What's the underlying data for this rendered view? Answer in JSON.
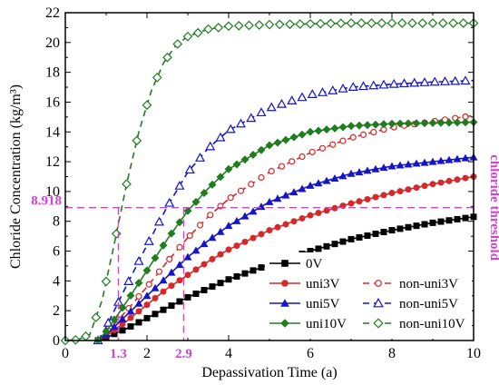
{
  "chart_data": {
    "type": "line",
    "xlabel": "Depassivation Time (a)",
    "ylabel": "Chloride Concentration (kg/m³)",
    "xlim": [
      0,
      10
    ],
    "ylim": [
      0,
      22
    ],
    "xticks": [
      "0",
      "2",
      "4",
      "6",
      "8",
      "10"
    ],
    "yticks": [
      "0",
      "2",
      "4",
      "6",
      "8",
      "10",
      "12",
      "14",
      "16",
      "18",
      "20",
      "22"
    ],
    "grid": false,
    "legend_position": "bottom-right",
    "annotations": {
      "threshold_value": 8.918,
      "threshold_label": "8.918",
      "threshold_name": "chloride threshold",
      "marker_1": {
        "x": 1.3,
        "label": "1.3"
      },
      "marker_2": {
        "x": 2.9,
        "label": "2.9"
      },
      "color": "#d63fd6"
    },
    "series": [
      {
        "name": "0V",
        "color": "#000000",
        "marker": "square",
        "dash": false,
        "x": [
          0.8,
          1,
          1.5,
          2,
          2.5,
          3,
          3.5,
          4,
          5,
          6,
          7,
          8,
          9,
          10
        ],
        "y": [
          0,
          0.2,
          0.8,
          1.5,
          2.2,
          2.9,
          3.5,
          4.1,
          5.1,
          6.0,
          6.8,
          7.4,
          7.9,
          8.3
        ]
      },
      {
        "name": "uni3V",
        "color": "#d62828",
        "marker": "circle",
        "dash": false,
        "x": [
          0.8,
          1,
          1.5,
          2,
          2.5,
          3,
          3.5,
          4,
          5,
          6,
          7,
          8,
          9,
          10
        ],
        "y": [
          0,
          0.3,
          1.3,
          2.4,
          3.5,
          4.4,
          5.3,
          6.1,
          7.4,
          8.4,
          9.2,
          9.9,
          10.5,
          11.0
        ]
      },
      {
        "name": "non-uni3V",
        "color": "#d62828",
        "marker": "circle-open",
        "dash": true,
        "x": [
          0.8,
          1,
          1.5,
          2,
          2.5,
          3,
          3.5,
          4,
          5,
          6,
          7,
          8,
          9,
          10
        ],
        "y": [
          0,
          0.5,
          2.0,
          3.6,
          5.3,
          6.9,
          8.3,
          9.5,
          11.3,
          12.6,
          13.6,
          14.3,
          14.7,
          15.1
        ]
      },
      {
        "name": "uni5V",
        "color": "#1515c8",
        "marker": "triangle",
        "dash": false,
        "x": [
          0.8,
          1,
          1.5,
          2,
          2.5,
          3,
          3.5,
          4,
          5,
          6,
          7,
          8,
          9,
          10
        ],
        "y": [
          0,
          0.4,
          1.7,
          3.0,
          4.3,
          5.6,
          6.7,
          7.7,
          9.3,
          10.4,
          11.2,
          11.7,
          12.0,
          12.3
        ]
      },
      {
        "name": "non-uni5V",
        "color": "#1515c8",
        "marker": "triangle-open",
        "dash": true,
        "x": [
          0.8,
          1,
          1.5,
          2,
          2.5,
          3,
          3.5,
          4,
          5,
          6,
          7,
          8,
          9,
          10
        ],
        "y": [
          0,
          0.9,
          3.7,
          6.4,
          9.0,
          11.3,
          12.9,
          14.1,
          15.6,
          16.5,
          17.0,
          17.2,
          17.35,
          17.45
        ]
      },
      {
        "name": "uni10V",
        "color": "#1e7d1e",
        "marker": "diamond",
        "dash": false,
        "x": [
          0.8,
          1,
          1.5,
          2,
          2.5,
          3,
          3.5,
          4,
          5,
          6,
          7,
          8,
          9,
          10
        ],
        "y": [
          0,
          0.6,
          2.6,
          4.7,
          6.8,
          8.7,
          10.2,
          11.5,
          13.1,
          14.0,
          14.4,
          14.55,
          14.6,
          14.65
        ]
      },
      {
        "name": "non-uni10V",
        "color": "#1e7d1e",
        "marker": "diamond-open",
        "dash": true,
        "x": [
          0,
          0.3,
          0.6,
          0.9,
          1.2,
          1.5,
          1.8,
          2.1,
          2.4,
          2.7,
          3.0,
          3.5,
          4,
          5,
          6,
          7,
          8,
          9,
          10
        ],
        "y": [
          0,
          0.05,
          0.4,
          2.7,
          6.5,
          10.5,
          14.0,
          16.7,
          18.6,
          19.8,
          20.4,
          20.9,
          21.1,
          21.2,
          21.25,
          21.3,
          21.3,
          21.3,
          21.3
        ]
      }
    ]
  }
}
